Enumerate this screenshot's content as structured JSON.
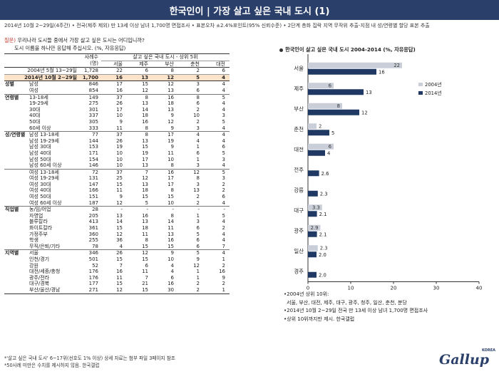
{
  "header": {
    "title": "한국인이 | 가장 살고 싶은 국내 도시 (1)",
    "survey_info": "2014년 10월 2~29일(4주간) • 전국(제주 제외) 만 13세 이상 남녀 1,700명 면접조사 • 표본오차 ±2.4%포인트(95% 신뢰수준) • 2단계 층화 집락 지역 무작위 추출-지점 내 성/연령별 할당 표본 추출"
  },
  "question": {
    "label": "질문)",
    "line1": "우리나라 도시들 중에서 가장 살고 싶은 도시는 어디입니까?",
    "line2": "도시 이름을 하나만 응답해 주십시오. (%, 자유응답)"
  },
  "table": {
    "header": {
      "sample_label": "사례수",
      "sample_unit": "(명)",
      "span_label": "살고 싶은 국내 도시 - 상위 5위",
      "cities": [
        "서울",
        "제주",
        "부산",
        "춘천",
        "대전"
      ]
    },
    "rows": [
      {
        "kind": "y2004",
        "group": "",
        "sub": "2004년 5월 13~29일",
        "n": "1,728",
        "vals": [
          "22",
          "6",
          "8",
          "2",
          "6"
        ]
      },
      {
        "kind": "y2014",
        "group": "",
        "sub": "2014년 10월 2~29일",
        "n": "1,700",
        "vals": [
          "16",
          "13",
          "12",
          "5",
          "4"
        ]
      },
      {
        "kind": "",
        "group": "성별",
        "sub": "남성",
        "n": "846",
        "vals": [
          "17",
          "15",
          "12",
          "3",
          "4"
        ],
        "sec": true
      },
      {
        "kind": "",
        "group": "",
        "sub": "여성",
        "n": "854",
        "vals": [
          "16",
          "12",
          "13",
          "6",
          "4"
        ]
      },
      {
        "kind": "",
        "group": "연령별",
        "sub": "13-18세",
        "n": "149",
        "vals": [
          "37",
          "8",
          "16",
          "8",
          "5"
        ],
        "sec": true
      },
      {
        "kind": "",
        "group": "",
        "sub": "19-29세",
        "n": "275",
        "vals": [
          "26",
          "13",
          "18",
          "6",
          "4"
        ]
      },
      {
        "kind": "",
        "group": "",
        "sub": "30대",
        "n": "301",
        "vals": [
          "17",
          "14",
          "13",
          "2",
          "4"
        ]
      },
      {
        "kind": "",
        "group": "",
        "sub": "40대",
        "n": "337",
        "vals": [
          "10",
          "18",
          "9",
          "10",
          "3"
        ]
      },
      {
        "kind": "",
        "group": "",
        "sub": "50대",
        "n": "305",
        "vals": [
          "9",
          "16",
          "12",
          "2",
          "5"
        ]
      },
      {
        "kind": "",
        "group": "",
        "sub": "60세 이상",
        "n": "333",
        "vals": [
          "11",
          "8",
          "9",
          "3",
          "4"
        ]
      },
      {
        "kind": "",
        "group": "성/연령별",
        "sub": "남성 13-18세",
        "n": "77",
        "vals": [
          "37",
          "8",
          "17",
          "4",
          "4"
        ],
        "sec": true
      },
      {
        "kind": "",
        "group": "",
        "sub": "남성 19-29세",
        "n": "144",
        "vals": [
          "26",
          "13",
          "19",
          "4",
          "4"
        ]
      },
      {
        "kind": "",
        "group": "",
        "sub": "남성 30대",
        "n": "153",
        "vals": [
          "19",
          "15",
          "9",
          "1",
          "6"
        ]
      },
      {
        "kind": "",
        "group": "",
        "sub": "남성 40대",
        "n": "171",
        "vals": [
          "10",
          "19",
          "11",
          "6",
          "5"
        ]
      },
      {
        "kind": "",
        "group": "",
        "sub": "남성 50대",
        "n": "154",
        "vals": [
          "10",
          "17",
          "10",
          "1",
          "3"
        ]
      },
      {
        "kind": "",
        "group": "",
        "sub": "남성 60세 이상",
        "n": "146",
        "vals": [
          "10",
          "13",
          "8",
          "3",
          "4"
        ]
      },
      {
        "kind": "",
        "group": "",
        "sub": "여성 13-18세",
        "n": "72",
        "vals": [
          "37",
          "7",
          "16",
          "12",
          "5"
        ],
        "sec": true
      },
      {
        "kind": "",
        "group": "",
        "sub": "여성 19-29세",
        "n": "131",
        "vals": [
          "25",
          "12",
          "17",
          "8",
          "3"
        ]
      },
      {
        "kind": "",
        "group": "",
        "sub": "여성 30대",
        "n": "147",
        "vals": [
          "15",
          "13",
          "17",
          "3",
          "2"
        ]
      },
      {
        "kind": "",
        "group": "",
        "sub": "여성 40대",
        "n": "166",
        "vals": [
          "11",
          "18",
          "8",
          "13",
          "2"
        ]
      },
      {
        "kind": "",
        "group": "",
        "sub": "여성 50대",
        "n": "151",
        "vals": [
          "9",
          "15",
          "15",
          "2",
          "6"
        ]
      },
      {
        "kind": "",
        "group": "",
        "sub": "여성 60세 이상",
        "n": "187",
        "vals": [
          "12",
          "5",
          "10",
          "2",
          "4"
        ]
      },
      {
        "kind": "",
        "group": "직업별",
        "sub": "농/임/어업",
        "n": "28",
        "vals": [
          "-",
          "-",
          "-",
          "-",
          "-"
        ],
        "sec": true
      },
      {
        "kind": "",
        "group": "",
        "sub": "자영업",
        "n": "205",
        "vals": [
          "13",
          "16",
          "8",
          "1",
          "5"
        ]
      },
      {
        "kind": "",
        "group": "",
        "sub": "블루칼라",
        "n": "413",
        "vals": [
          "14",
          "13",
          "14",
          "3",
          "4"
        ]
      },
      {
        "kind": "",
        "group": "",
        "sub": "화이트칼라",
        "n": "361",
        "vals": [
          "15",
          "18",
          "11",
          "6",
          "2"
        ]
      },
      {
        "kind": "",
        "group": "",
        "sub": "가정주부",
        "n": "360",
        "vals": [
          "12",
          "11",
          "13",
          "5",
          "4"
        ]
      },
      {
        "kind": "",
        "group": "",
        "sub": "학생",
        "n": "255",
        "vals": [
          "36",
          "8",
          "16",
          "6",
          "4"
        ]
      },
      {
        "kind": "",
        "group": "",
        "sub": "무직/은퇴/기타",
        "n": "78",
        "vals": [
          "4",
          "15",
          "15",
          "6",
          "7"
        ]
      },
      {
        "kind": "",
        "group": "지역별",
        "sub": "서울",
        "n": "346",
        "vals": [
          "26",
          "12",
          "9",
          "5",
          "4"
        ],
        "sec": true
      },
      {
        "kind": "",
        "group": "",
        "sub": "인천/경기",
        "n": "501",
        "vals": [
          "15",
          "15",
          "10",
          "9",
          "1"
        ]
      },
      {
        "kind": "",
        "group": "",
        "sub": "강원",
        "n": "52",
        "vals": [
          "7",
          "6",
          "4",
          "12",
          "2"
        ]
      },
      {
        "kind": "",
        "group": "",
        "sub": "대전/세종/충청",
        "n": "176",
        "vals": [
          "16",
          "11",
          "4",
          "1",
          "16"
        ]
      },
      {
        "kind": "",
        "group": "",
        "sub": "광주/전라",
        "n": "176",
        "vals": [
          "11",
          "7",
          "6",
          "1",
          "9"
        ]
      },
      {
        "kind": "",
        "group": "",
        "sub": "대구/경북",
        "n": "177",
        "vals": [
          "15",
          "21",
          "16",
          "2",
          "2"
        ]
      },
      {
        "kind": "",
        "group": "",
        "sub": "부산/울산/경남",
        "n": "271",
        "vals": [
          "12",
          "15",
          "30",
          "2",
          "1"
        ],
        "last": true
      }
    ]
  },
  "footnotes": {
    "line1": "*'살고 싶은 국내 도시' 6~17위(선호도 1% 이상) 상세 자료는 첨부 파일 3페이지 참조",
    "line2": "*50사례 미만은 수치를 제시하지 않음. 한국갤럽"
  },
  "chart_data": {
    "type": "bar",
    "title": "한국인이 살고 싶은 국내 도시 2004-2014 (%, 자유응답)",
    "orientation": "horizontal",
    "categories": [
      "서울",
      "제주",
      "부산",
      "춘천",
      "대전",
      "전주",
      "강릉",
      "대구",
      "광주",
      "일산",
      "경주"
    ],
    "series": [
      {
        "name": "2004년",
        "color": "#c9ced9",
        "values": [
          22,
          6,
          8,
          2,
          6,
          null,
          null,
          3.3,
          2.9,
          2.3,
          null
        ]
      },
      {
        "name": "2014년",
        "color": "#1f3864",
        "values": [
          16,
          13,
          12,
          5,
          4,
          2.6,
          2.3,
          2.1,
          2.1,
          2.0,
          2.0
        ]
      }
    ],
    "value_labels": {
      "2004년": [
        "22",
        "6",
        "8",
        "2",
        "6",
        "",
        "",
        "3.3",
        "2.9",
        "2.3",
        ""
      ],
      "2014년": [
        "16",
        "13",
        "12",
        "5",
        "4",
        "2.6",
        "2.3",
        "2.1",
        "2.1",
        "2.0",
        "2.0"
      ]
    },
    "xlim": [
      0,
      40
    ],
    "xticks": [
      "0",
      "10",
      "20",
      "30",
      "40"
    ],
    "legend_position": "right",
    "grid": false
  },
  "chart_notes": {
    "n1": "•2004년 상위 10위:",
    "n2": "서울, 부산, 대전, 제주, 대구, 광주, 청주, 일산, 춘천, 분당",
    "n3": "•2014년 10월 2~29일 전국 만 13세 이상 남녀 1,700명 면접조사",
    "n4": "•상위 10위까지만 제시. 한국갤럽"
  },
  "logo": {
    "text": "Gallup",
    "korea": "KOREA"
  }
}
